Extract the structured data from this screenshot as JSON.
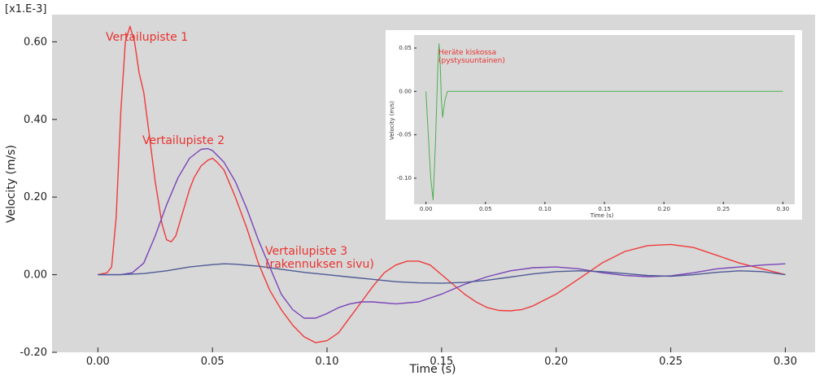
{
  "chart_data": [
    {
      "type": "line",
      "scale_label": "[x1.E-3]",
      "xlabel": "Time  (s)",
      "ylabel": "Velocity  (m/s)",
      "xlim": [
        -0.02,
        0.313
      ],
      "ylim": [
        -0.2,
        0.67
      ],
      "x_ticks": [
        "0.00",
        "0.05",
        "0.10",
        "0.15",
        "0.20",
        "0.25",
        "0.30"
      ],
      "y_ticks": [
        "-0.20",
        "0.00",
        "0.20",
        "0.40",
        "0.60"
      ],
      "grid": false,
      "background": "#d8d8d8",
      "annotations": {
        "a1": "Vertailupiste 1",
        "a2": "Vertailupiste 2",
        "a3_line1": "Vertailupiste 3",
        "a3_line2": "(rakennuksen sivu)"
      },
      "series": [
        {
          "color": "#f03a3a",
          "x": [
            0,
            0.004,
            0.006,
            0.008,
            0.01,
            0.012,
            0.014,
            0.016,
            0.018,
            0.02,
            0.022,
            0.025,
            0.028,
            0.03,
            0.032,
            0.034,
            0.036,
            0.038,
            0.04,
            0.042,
            0.045,
            0.048,
            0.05,
            0.052,
            0.055,
            0.06,
            0.065,
            0.07,
            0.075,
            0.08,
            0.085,
            0.09,
            0.095,
            0.1,
            0.105,
            0.11,
            0.115,
            0.12,
            0.125,
            0.13,
            0.135,
            0.14,
            0.145,
            0.15,
            0.155,
            0.16,
            0.165,
            0.17,
            0.175,
            0.18,
            0.185,
            0.19,
            0.2,
            0.21,
            0.22,
            0.23,
            0.24,
            0.25,
            0.26,
            0.27,
            0.28,
            0.29,
            0.3
          ],
          "y": [
            0.0,
            0.005,
            0.02,
            0.15,
            0.42,
            0.6,
            0.64,
            0.6,
            0.52,
            0.47,
            0.38,
            0.24,
            0.13,
            0.09,
            0.085,
            0.1,
            0.14,
            0.18,
            0.22,
            0.25,
            0.28,
            0.295,
            0.3,
            0.29,
            0.27,
            0.2,
            0.12,
            0.03,
            -0.04,
            -0.09,
            -0.13,
            -0.16,
            -0.175,
            -0.17,
            -0.15,
            -0.11,
            -0.07,
            -0.03,
            0.005,
            0.025,
            0.035,
            0.035,
            0.025,
            0.0,
            -0.025,
            -0.05,
            -0.07,
            -0.085,
            -0.092,
            -0.093,
            -0.09,
            -0.08,
            -0.05,
            -0.01,
            0.03,
            0.06,
            0.075,
            0.078,
            0.07,
            0.05,
            0.03,
            0.015,
            0.0
          ]
        },
        {
          "color": "#7a44b8",
          "x": [
            0,
            0.01,
            0.015,
            0.02,
            0.025,
            0.03,
            0.035,
            0.04,
            0.045,
            0.048,
            0.05,
            0.055,
            0.06,
            0.065,
            0.07,
            0.075,
            0.08,
            0.085,
            0.09,
            0.095,
            0.1,
            0.105,
            0.11,
            0.115,
            0.12,
            0.13,
            0.14,
            0.15,
            0.16,
            0.17,
            0.18,
            0.19,
            0.2,
            0.21,
            0.22,
            0.23,
            0.24,
            0.25,
            0.26,
            0.27,
            0.28,
            0.29,
            0.3
          ],
          "y": [
            0.0,
            0.0,
            0.005,
            0.03,
            0.1,
            0.18,
            0.25,
            0.3,
            0.323,
            0.325,
            0.32,
            0.29,
            0.24,
            0.17,
            0.09,
            0.02,
            -0.05,
            -0.09,
            -0.112,
            -0.112,
            -0.1,
            -0.085,
            -0.075,
            -0.07,
            -0.07,
            -0.075,
            -0.07,
            -0.05,
            -0.025,
            -0.005,
            0.01,
            0.018,
            0.02,
            0.015,
            0.005,
            -0.002,
            -0.005,
            -0.003,
            0.005,
            0.015,
            0.02,
            0.025,
            0.028
          ]
        },
        {
          "color": "#4e5a95",
          "x": [
            0,
            0.01,
            0.02,
            0.03,
            0.04,
            0.05,
            0.055,
            0.06,
            0.07,
            0.08,
            0.09,
            0.1,
            0.11,
            0.12,
            0.13,
            0.14,
            0.15,
            0.16,
            0.17,
            0.18,
            0.19,
            0.2,
            0.21,
            0.22,
            0.23,
            0.24,
            0.25,
            0.26,
            0.27,
            0.28,
            0.29,
            0.3
          ],
          "y": [
            0.0,
            0.0,
            0.003,
            0.01,
            0.02,
            0.026,
            0.028,
            0.027,
            0.022,
            0.014,
            0.006,
            0.0,
            -0.006,
            -0.012,
            -0.018,
            -0.021,
            -0.022,
            -0.02,
            -0.014,
            -0.006,
            0.002,
            0.008,
            0.01,
            0.008,
            0.003,
            -0.002,
            -0.004,
            0.0,
            0.006,
            0.01,
            0.008,
            0.0
          ]
        }
      ]
    },
    {
      "type": "line",
      "xlabel": "Time  (s)",
      "ylabel": "Velocity  (m/s)",
      "xlim": [
        -0.01,
        0.31
      ],
      "ylim": [
        -0.13,
        0.065
      ],
      "x_ticks": [
        "0.00",
        "0.05",
        "0.10",
        "0.15",
        "0.20",
        "0.25",
        "0.30"
      ],
      "y_ticks": [
        "-0.10",
        "-0.05",
        "0.00",
        "0.05"
      ],
      "grid": false,
      "background": "#d8d8d8",
      "annotation_line1": "Heräte kiskossa",
      "annotation_line2": "(pystysuuntainen)",
      "series": [
        {
          "color": "#4caf50",
          "x": [
            0,
            0.002,
            0.004,
            0.006,
            0.008,
            0.01,
            0.011,
            0.012,
            0.013,
            0.014,
            0.016,
            0.018,
            0.02,
            0.03,
            0.1,
            0.2,
            0.3
          ],
          "y": [
            0.0,
            -0.05,
            -0.1,
            -0.125,
            -0.06,
            0.03,
            0.055,
            0.03,
            -0.01,
            -0.03,
            -0.01,
            0.0,
            0.0,
            0.0,
            0.0,
            0.0,
            0.0
          ]
        }
      ]
    }
  ]
}
